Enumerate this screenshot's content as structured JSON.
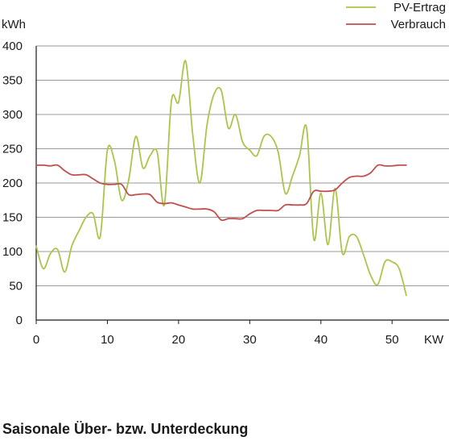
{
  "caption": "Saisonale Über- bzw. Unterdeckung",
  "chart_data": {
    "type": "line",
    "title": "",
    "xlabel": "KW",
    "ylabel": "kWh",
    "xlim": [
      0,
      58
    ],
    "ylim": [
      0,
      400
    ],
    "xticks": [
      0,
      10,
      20,
      30,
      40,
      50
    ],
    "yticks": [
      0,
      50,
      100,
      150,
      200,
      250,
      300,
      350,
      400
    ],
    "grid": "horizontal",
    "legend": "top-right",
    "series": [
      {
        "name": "PV-Ertrag",
        "color": "#a9c64a",
        "x": [
          0,
          1,
          2,
          3,
          4,
          5,
          6,
          7,
          8,
          9,
          10,
          11,
          12,
          13,
          14,
          15,
          16,
          17,
          18,
          19,
          20,
          21,
          22,
          23,
          24,
          25,
          26,
          27,
          28,
          29,
          30,
          31,
          32,
          33,
          34,
          35,
          36,
          37,
          38,
          39,
          40,
          41,
          42,
          43,
          44,
          45,
          46,
          47,
          48,
          49,
          50,
          51,
          52
        ],
        "values": [
          108,
          75,
          97,
          103,
          70,
          108,
          130,
          150,
          155,
          122,
          248,
          232,
          175,
          205,
          268,
          222,
          240,
          245,
          168,
          320,
          318,
          378,
          270,
          200,
          285,
          330,
          335,
          280,
          300,
          260,
          248,
          240,
          268,
          268,
          245,
          185,
          210,
          240,
          280,
          118,
          185,
          110,
          192,
          98,
          122,
          122,
          95,
          65,
          52,
          85,
          85,
          75,
          36
        ]
      },
      {
        "name": "Verbrauch",
        "color": "#c0504d",
        "x": [
          0,
          1,
          2,
          3,
          4,
          5,
          6,
          7,
          8,
          9,
          10,
          11,
          12,
          13,
          14,
          15,
          16,
          17,
          18,
          19,
          20,
          21,
          22,
          23,
          24,
          25,
          26,
          27,
          28,
          29,
          30,
          31,
          32,
          33,
          34,
          35,
          36,
          37,
          38,
          39,
          40,
          41,
          42,
          43,
          44,
          45,
          46,
          47,
          48,
          49,
          50,
          51,
          52
        ],
        "values": [
          226,
          226,
          225,
          226,
          218,
          212,
          212,
          212,
          206,
          200,
          198,
          198,
          198,
          183,
          183,
          184,
          183,
          172,
          170,
          171,
          168,
          165,
          162,
          162,
          162,
          158,
          146,
          148,
          148,
          148,
          155,
          160,
          160,
          160,
          160,
          168,
          168,
          168,
          170,
          188,
          188,
          188,
          190,
          200,
          208,
          210,
          210,
          215,
          226,
          225,
          225,
          226,
          226
        ]
      }
    ]
  }
}
